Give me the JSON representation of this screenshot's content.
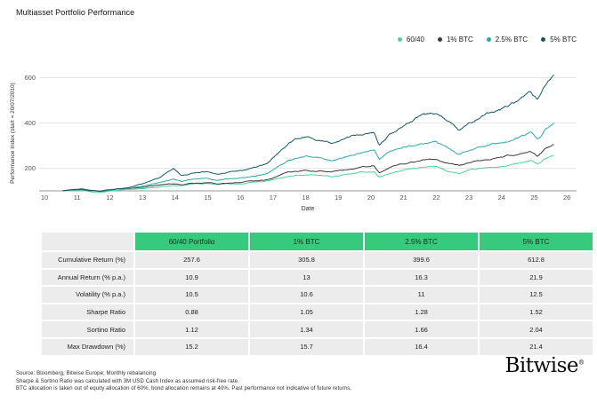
{
  "page_title": "Multiasset Portfolio Performance",
  "colors": {
    "header_green": "#36ca7c",
    "cell_gray": "#ececec",
    "gridline": "#e7e7e7",
    "axis_line": "#9a9a9a",
    "tick_text": "#555555"
  },
  "chart_data": {
    "type": "line",
    "title": "Multiasset Portfolio Performance",
    "xlabel": "Date",
    "ylabel": "Performance Index (start = 20/07/2010)",
    "x_ticks": [
      10,
      11,
      12,
      13,
      14,
      15,
      16,
      17,
      18,
      19,
      20,
      21,
      22,
      23,
      24,
      25,
      26
    ],
    "y_ticks": [
      200,
      400,
      600
    ],
    "xlim": [
      10,
      26
    ],
    "ylim": [
      93,
      650
    ],
    "grid": true,
    "legend_position": "top-right",
    "series": [
      {
        "name": "60/40",
        "color": "#4fcf99",
        "points": [
          [
            10.55,
            100
          ],
          [
            10.8,
            103
          ],
          [
            11.1,
            105
          ],
          [
            11.45,
            98
          ],
          [
            11.7,
            96
          ],
          [
            12,
            102
          ],
          [
            12.5,
            106
          ],
          [
            13,
            112
          ],
          [
            13.5,
            118
          ],
          [
            13.95,
            124
          ],
          [
            14.2,
            121
          ],
          [
            14.5,
            128
          ],
          [
            15,
            132
          ],
          [
            15.3,
            127
          ],
          [
            15.8,
            130
          ],
          [
            16.2,
            133
          ],
          [
            16.8,
            142
          ],
          [
            17.5,
            162
          ],
          [
            18,
            170
          ],
          [
            18.8,
            162
          ],
          [
            19.5,
            175
          ],
          [
            20.1,
            185
          ],
          [
            20.25,
            160
          ],
          [
            20.6,
            178
          ],
          [
            21,
            192
          ],
          [
            21.5,
            200
          ],
          [
            22,
            204
          ],
          [
            22.4,
            185
          ],
          [
            22.7,
            176
          ],
          [
            23,
            188
          ],
          [
            23.5,
            198
          ],
          [
            24,
            206
          ],
          [
            24.5,
            218
          ],
          [
            24.9,
            228
          ],
          [
            25.1,
            215
          ],
          [
            25.35,
            240
          ],
          [
            25.6,
            257.6
          ]
        ]
      },
      {
        "name": "1% BTC",
        "color": "#3a3a3a",
        "points": [
          [
            10.55,
            100
          ],
          [
            10.8,
            104
          ],
          [
            11.1,
            106
          ],
          [
            11.45,
            99
          ],
          [
            11.7,
            97
          ],
          [
            12,
            103
          ],
          [
            12.5,
            108
          ],
          [
            13,
            116
          ],
          [
            13.5,
            124
          ],
          [
            13.95,
            132
          ],
          [
            14.2,
            127
          ],
          [
            14.5,
            133
          ],
          [
            15,
            138
          ],
          [
            15.3,
            133
          ],
          [
            15.8,
            137
          ],
          [
            16.2,
            141
          ],
          [
            16.8,
            152
          ],
          [
            17.5,
            185
          ],
          [
            18,
            195
          ],
          [
            18.8,
            185
          ],
          [
            19.5,
            200
          ],
          [
            20.1,
            212
          ],
          [
            20.25,
            182
          ],
          [
            20.6,
            205
          ],
          [
            21,
            222
          ],
          [
            21.5,
            234
          ],
          [
            22,
            240
          ],
          [
            22.4,
            216
          ],
          [
            22.7,
            205
          ],
          [
            23,
            220
          ],
          [
            23.5,
            234
          ],
          [
            24,
            244
          ],
          [
            24.5,
            260
          ],
          [
            24.9,
            272
          ],
          [
            25.1,
            255
          ],
          [
            25.35,
            285
          ],
          [
            25.6,
            305.8
          ]
        ]
      },
      {
        "name": "2.5% BTC",
        "color": "#2ba7aa",
        "points": [
          [
            10.55,
            100
          ],
          [
            10.8,
            104
          ],
          [
            11.1,
            107
          ],
          [
            11.45,
            100
          ],
          [
            11.7,
            98
          ],
          [
            12,
            104
          ],
          [
            12.5,
            110
          ],
          [
            13,
            122
          ],
          [
            13.5,
            136
          ],
          [
            13.95,
            152
          ],
          [
            14.2,
            140
          ],
          [
            14.5,
            148
          ],
          [
            15,
            154
          ],
          [
            15.3,
            147
          ],
          [
            15.8,
            152
          ],
          [
            16.2,
            158
          ],
          [
            16.8,
            172
          ],
          [
            17.5,
            235
          ],
          [
            18,
            250
          ],
          [
            18.8,
            235
          ],
          [
            19.5,
            258
          ],
          [
            20.1,
            272
          ],
          [
            20.25,
            230
          ],
          [
            20.6,
            265
          ],
          [
            21,
            288
          ],
          [
            21.5,
            305
          ],
          [
            22,
            312
          ],
          [
            22.4,
            280
          ],
          [
            22.7,
            262
          ],
          [
            23,
            285
          ],
          [
            23.5,
            302
          ],
          [
            24,
            315
          ],
          [
            24.5,
            338
          ],
          [
            24.9,
            355
          ],
          [
            25.1,
            330
          ],
          [
            25.35,
            372
          ],
          [
            25.6,
            399.6
          ]
        ]
      },
      {
        "name": "5% BTC",
        "color": "#14585f",
        "points": [
          [
            10.55,
            100
          ],
          [
            10.8,
            105
          ],
          [
            11.1,
            108
          ],
          [
            11.45,
            101
          ],
          [
            11.7,
            99
          ],
          [
            12,
            106
          ],
          [
            12.5,
            114
          ],
          [
            13,
            132
          ],
          [
            13.5,
            158
          ],
          [
            13.95,
            200
          ],
          [
            14.2,
            170
          ],
          [
            14.5,
            180
          ],
          [
            15,
            188
          ],
          [
            15.3,
            177
          ],
          [
            15.8,
            184
          ],
          [
            16.2,
            192
          ],
          [
            16.8,
            215
          ],
          [
            17.5,
            310
          ],
          [
            18,
            340
          ],
          [
            18.8,
            310
          ],
          [
            19.5,
            345
          ],
          [
            20.1,
            365
          ],
          [
            20.25,
            305
          ],
          [
            20.6,
            355
          ],
          [
            21,
            395
          ],
          [
            21.5,
            430
          ],
          [
            22,
            445
          ],
          [
            22.4,
            400
          ],
          [
            22.7,
            370
          ],
          [
            23,
            405
          ],
          [
            23.5,
            435
          ],
          [
            24,
            460
          ],
          [
            24.5,
            495
          ],
          [
            24.9,
            530
          ],
          [
            25.1,
            495
          ],
          [
            25.35,
            565
          ],
          [
            25.6,
            612.8
          ]
        ]
      }
    ]
  },
  "table": {
    "header": [
      "",
      "60/40 Portfolio",
      "1% BTC",
      "2.5% BTC",
      "5% BTC"
    ],
    "rows": [
      {
        "label": "Cumulative Return (%)",
        "values": [
          "257.6",
          "305.8",
          "399.6",
          "612.8"
        ]
      },
      {
        "label": "Annual Return (% p.a.)",
        "values": [
          "10.9",
          "13",
          "16.3",
          "21.9"
        ]
      },
      {
        "label": "Volatility (% p.a.)",
        "values": [
          "10.5",
          "10.6",
          "11",
          "12.5"
        ]
      },
      {
        "label": "Sharpe Ratio",
        "values": [
          "0.88",
          "1.05",
          "1.28",
          "1.52"
        ]
      },
      {
        "label": "Sortino Ratio",
        "values": [
          "1.12",
          "1.34",
          "1.66",
          "2.04"
        ]
      },
      {
        "label": "Max Drawdown (%)",
        "values": [
          "15.2",
          "15.7",
          "16.4",
          "21.4"
        ]
      }
    ]
  },
  "footer": {
    "lines": [
      "Source: Bloomberg, Bitwise Europe; Monthly rebalancing",
      "Sharpe & Sortino Ratio was calculated with 3M USD Cash Index as assumed risk-free rate.",
      "BTC allocation is taken out of equity allocation of 60%, bond allocation remains at 40%. Past performance not indicative of future returns."
    ]
  },
  "logo": {
    "text": "Bitwise",
    "registered": "®"
  }
}
